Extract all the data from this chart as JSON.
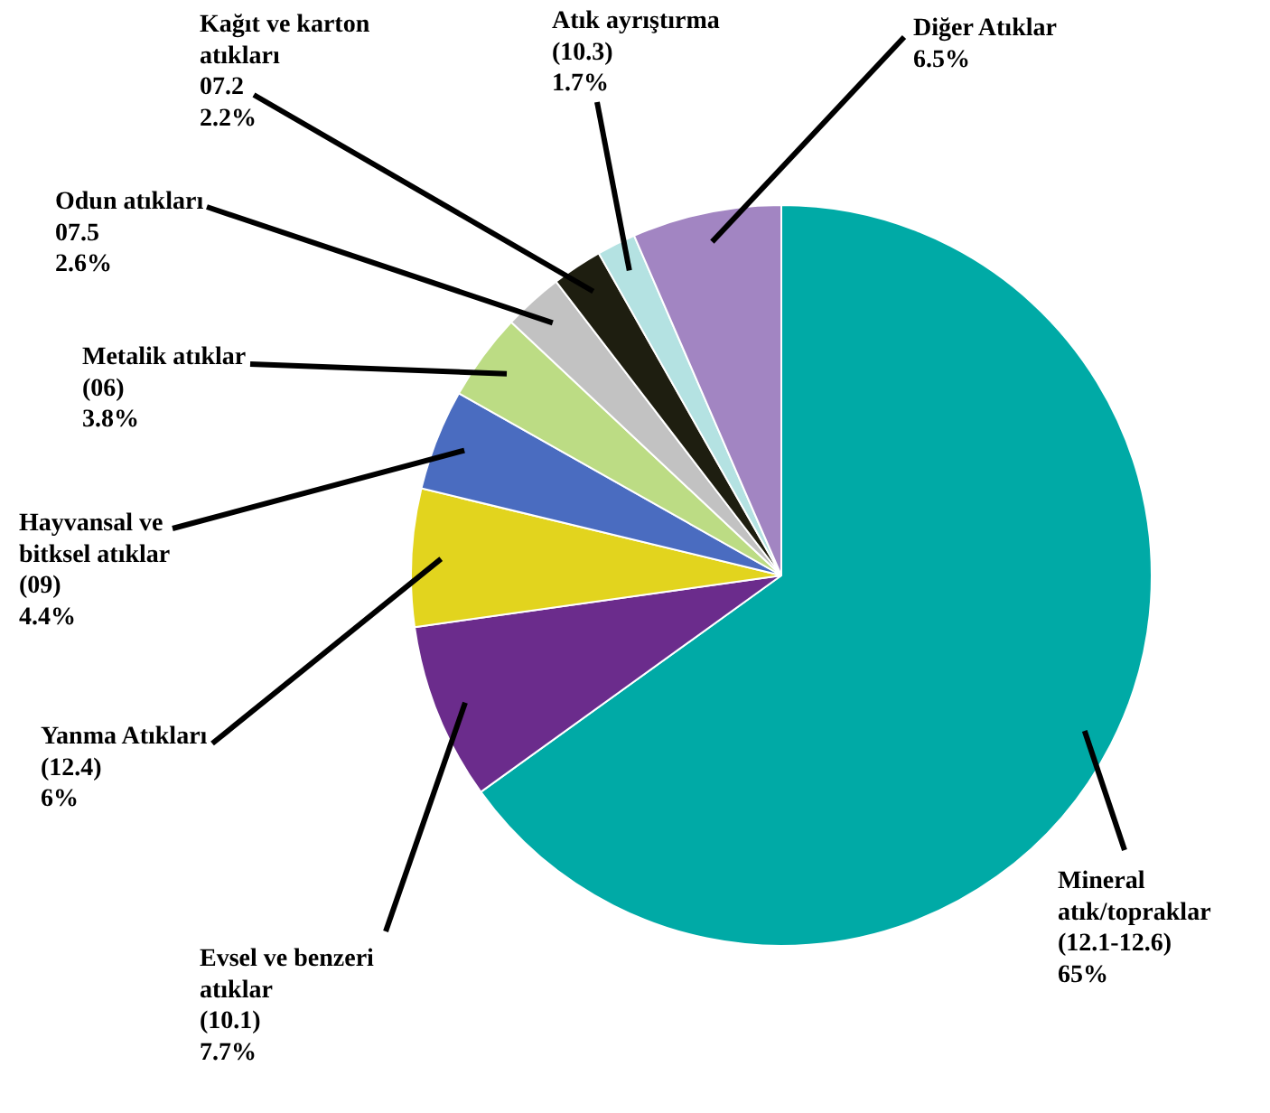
{
  "chart_data": {
    "type": "pie",
    "categories": [
      "Mineral\natık/topraklar\n(12.1-12.6)",
      "Evsel ve benzeri\natıklar\n(10.1)",
      "Yanma Atıkları\n(12.4)",
      "Hayvansal ve\nbitksel atıklar\n(09)",
      "Metalik atıklar\n(06)",
      "Odun atıkları\n07.5",
      "Kağıt ve karton\natıkları\n07.2",
      "Atık ayrıştırma\n(10.3)",
      "Diğer Atıklar"
    ],
    "values": [
      65,
      7.7,
      6,
      4.4,
      3.8,
      2.6,
      2.2,
      1.7,
      6.5
    ],
    "colors": [
      "#00aaa6",
      "#6b2c8c",
      "#e2d41e",
      "#4a6cc0",
      "#bcdc84",
      "#c2c2c2",
      "#1e1e10",
      "#b4e2e2",
      "#a285c2"
    ],
    "value_labels": [
      "65%",
      "7.7%",
      "6%",
      "4.4%",
      "3.8%",
      "2.6%",
      "2.2%",
      "1.7%",
      "6.5%"
    ]
  }
}
